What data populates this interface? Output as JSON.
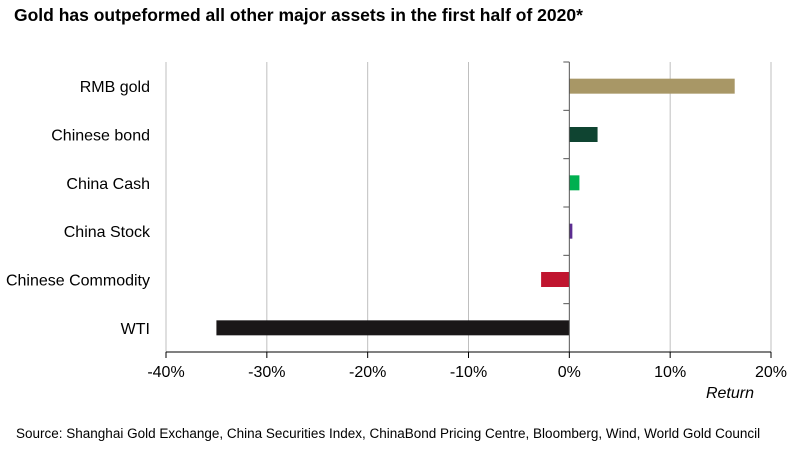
{
  "title": "Gold has outpeformed all other major assets in the first half of 2020*",
  "source": "Source: Shanghai Gold Exchange, China Securities Index, ChinaBond Pricing Centre, Bloomberg, Wind, World Gold Council",
  "chart_data": {
    "type": "bar",
    "orientation": "horizontal",
    "title": "Gold has outpeformed all other major assets in the first half of 2020*",
    "xlabel": "Return",
    "ylabel": "",
    "xlim": [
      -40,
      20
    ],
    "xticks": [
      -40,
      -30,
      -20,
      -10,
      0,
      10,
      20
    ],
    "xtick_labels": [
      "-40%",
      "-30%",
      "-20%",
      "-10%",
      "0%",
      "10%",
      "20%"
    ],
    "grid": "vertical",
    "legend": "none",
    "categories": [
      "RMB gold",
      "Chinese bond",
      "China Cash",
      "China Stock",
      "Chinese Commodity",
      "WTI"
    ],
    "values": [
      16.4,
      2.8,
      1.0,
      0.3,
      -2.8,
      -35.0
    ],
    "colors": [
      "#a89766",
      "#0f4431",
      "#00b050",
      "#5c2d91",
      "#c0152f",
      "#1a1718"
    ]
  }
}
